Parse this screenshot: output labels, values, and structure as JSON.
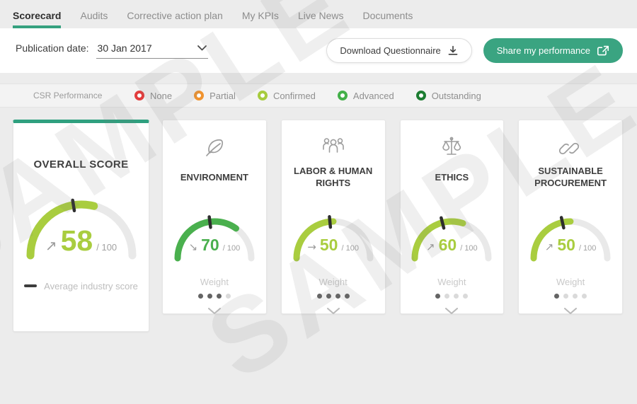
{
  "colors": {
    "accent_green": "#35a17f",
    "score_yellow_green": "#a9cd3f",
    "environment_green": "#4ab04e",
    "gauge_track": "#e9e9e9",
    "tick_dark": "#2e2e2e"
  },
  "tabs": [
    {
      "label": "Scorecard",
      "active": true
    },
    {
      "label": "Audits",
      "active": false
    },
    {
      "label": "Corrective action plan",
      "active": false
    },
    {
      "label": "My KPIs",
      "active": false
    },
    {
      "label": "Live News",
      "active": false
    },
    {
      "label": "Documents",
      "active": false
    }
  ],
  "toolbar": {
    "publication_label": "Publication date:",
    "publication_value": "30 Jan 2017",
    "download_label": "Download Questionnaire",
    "share_label": "Share my performance"
  },
  "legend": {
    "title": "CSR Performance",
    "items": [
      {
        "label": "None",
        "color": "#e23d3d"
      },
      {
        "label": "Partial",
        "color": "#f0932f"
      },
      {
        "label": "Confirmed",
        "color": "#a7cc3e"
      },
      {
        "label": "Advanced",
        "color": "#43b049"
      },
      {
        "label": "Outstanding",
        "color": "#1d7d32"
      }
    ]
  },
  "cards": [
    {
      "id": "overall",
      "title": "OVERALL SCORE",
      "score": 58,
      "denominator": "/ 100",
      "trend_arrow": "↗",
      "score_color": "#a9cd3f",
      "arc_color": "#a9cd3f",
      "tick_pct": 45,
      "benchmark_label": "Average industry score"
    },
    {
      "id": "environment",
      "title": "ENVIRONMENT",
      "icon": "leaf-icon",
      "score": 70,
      "denominator": "/ 100",
      "trend_arrow": "↘",
      "score_color": "#4ab04e",
      "arc_color": "#4ab04e",
      "tick_pct": 46,
      "weight_label": "Weight",
      "weight_filled": 3,
      "weight_total": 4
    },
    {
      "id": "labor-human-rights",
      "title": "LABOR & HUMAN RIGHTS",
      "icon": "people-icon",
      "score": 50,
      "denominator": "/ 100",
      "trend_arrow": "→",
      "score_color": "#a9cd3f",
      "arc_color": "#a9cd3f",
      "tick_pct": 47,
      "weight_label": "Weight",
      "weight_filled": 4,
      "weight_total": 4
    },
    {
      "id": "ethics",
      "title": "ETHICS",
      "icon": "scales-icon",
      "score": 60,
      "denominator": "/ 100",
      "trend_arrow": "↗",
      "score_color": "#a9cd3f",
      "arc_color": "#a9cd3f",
      "tick_pct": 42,
      "weight_label": "Weight",
      "weight_filled": 1,
      "weight_total": 4
    },
    {
      "id": "sustainable-procurement",
      "title": "SUSTAINABLE PROCUREMENT",
      "icon": "link-icon",
      "score": 50,
      "denominator": "/ 100",
      "trend_arrow": "↗",
      "score_color": "#a9cd3f",
      "arc_color": "#a9cd3f",
      "tick_pct": 43,
      "weight_label": "Weight",
      "weight_filled": 1,
      "weight_total": 4
    }
  ],
  "watermark": {
    "text": "SAMPLE"
  }
}
